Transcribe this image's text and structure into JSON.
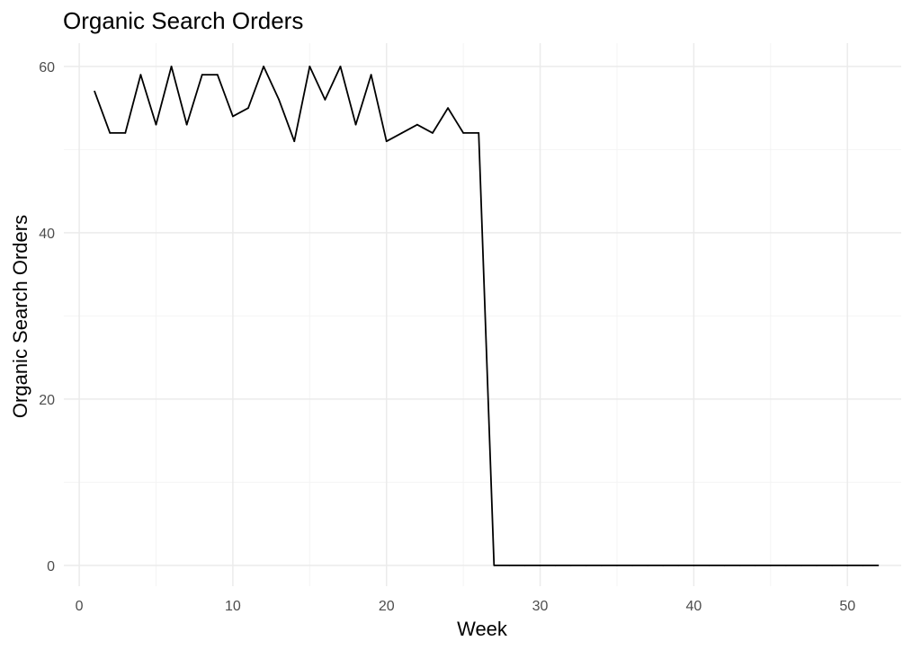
{
  "chart_data": {
    "type": "line",
    "title": "Organic Search Orders",
    "xlabel": "Week",
    "ylabel": "Organic Search Orders",
    "xlim": [
      -1,
      53.5
    ],
    "ylim": [
      -2.5,
      62.8
    ],
    "x_ticks": [
      0,
      10,
      20,
      30,
      40,
      50
    ],
    "x_minor_ticks": [
      5,
      15,
      25,
      35,
      45
    ],
    "y_ticks": [
      0,
      20,
      40,
      60
    ],
    "y_minor_ticks": [
      10,
      30,
      50
    ],
    "grid": true,
    "legend": "none",
    "colors": {
      "line": "#000000",
      "grid_major": "#ebebeb",
      "grid_minor": "#f4f4f4",
      "tick_text": "#4d4d4d",
      "background": "#ffffff"
    },
    "series": [
      {
        "x": [
          1,
          2,
          3,
          4,
          5,
          6,
          7,
          8,
          9,
          10,
          11,
          12,
          13,
          14,
          15,
          16,
          17,
          18,
          19,
          20,
          21,
          22,
          23,
          24,
          25,
          26,
          27,
          28,
          29,
          30,
          31,
          32,
          33,
          34,
          35,
          36,
          37,
          38,
          39,
          40,
          41,
          42,
          43,
          44,
          45,
          46,
          47,
          48,
          49,
          50,
          51,
          52
        ],
        "values": [
          57,
          52,
          52,
          59,
          53,
          60,
          53,
          59,
          59,
          54,
          55,
          60,
          56,
          51,
          60,
          56,
          60,
          53,
          59,
          51,
          52,
          53,
          52,
          55,
          52,
          52,
          0,
          0,
          0,
          0,
          0,
          0,
          0,
          0,
          0,
          0,
          0,
          0,
          0,
          0,
          0,
          0,
          0,
          0,
          0,
          0,
          0,
          0,
          0,
          0,
          0,
          0
        ]
      }
    ]
  }
}
